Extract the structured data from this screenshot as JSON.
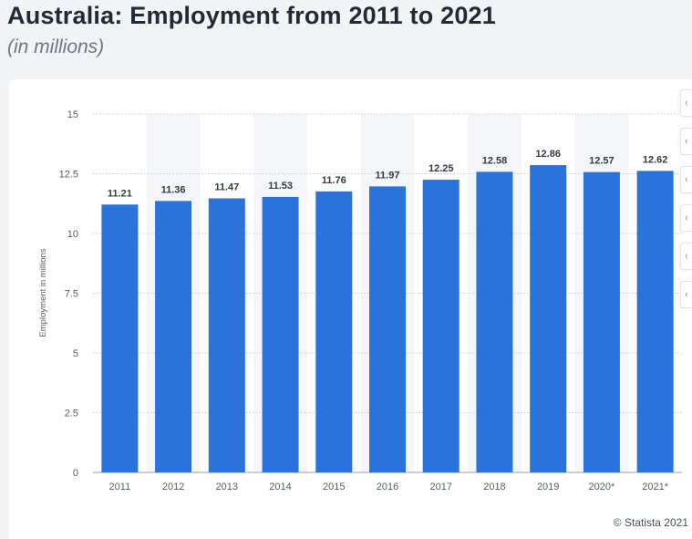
{
  "page": {
    "title": "Australia: Employment from 2011 to 2021",
    "subtitle": "(in millions)",
    "credit": "© Statista 2021"
  },
  "colors": {
    "bar": "#2a73db",
    "grid": "#c8ccd2",
    "band": "#f5f6f9",
    "label": "#333a44",
    "axis_text": "#555d67"
  },
  "toolbar": {
    "buttons": [
      "bell-icon",
      "star-icon",
      "download-icon",
      "share-icon",
      "settings-icon",
      "info-icon"
    ]
  },
  "chart_data": {
    "type": "bar",
    "title": "Australia: Employment from 2011 to 2021",
    "subtitle": "(in millions)",
    "xlabel": "",
    "ylabel": "Employment in millions",
    "categories": [
      "2011",
      "2012",
      "2013",
      "2014",
      "2015",
      "2016",
      "2017",
      "2018",
      "2019",
      "2020*",
      "2021*"
    ],
    "values": [
      11.21,
      11.36,
      11.47,
      11.53,
      11.76,
      11.97,
      12.25,
      12.58,
      12.86,
      12.57,
      12.62
    ],
    "data_labels": [
      "11.21",
      "11.36",
      "11.47",
      "11.53",
      "11.76",
      "11.97",
      "12.25",
      "12.58",
      "12.86",
      "12.57",
      "12.62"
    ],
    "ylim": [
      0,
      15
    ],
    "yticks": [
      0,
      2.5,
      5,
      7.5,
      10,
      12.5,
      15
    ],
    "ytick_labels": [
      "0",
      "2.5",
      "5",
      "7.5",
      "10",
      "12.5",
      "15"
    ],
    "grid": true,
    "legend": "none"
  }
}
